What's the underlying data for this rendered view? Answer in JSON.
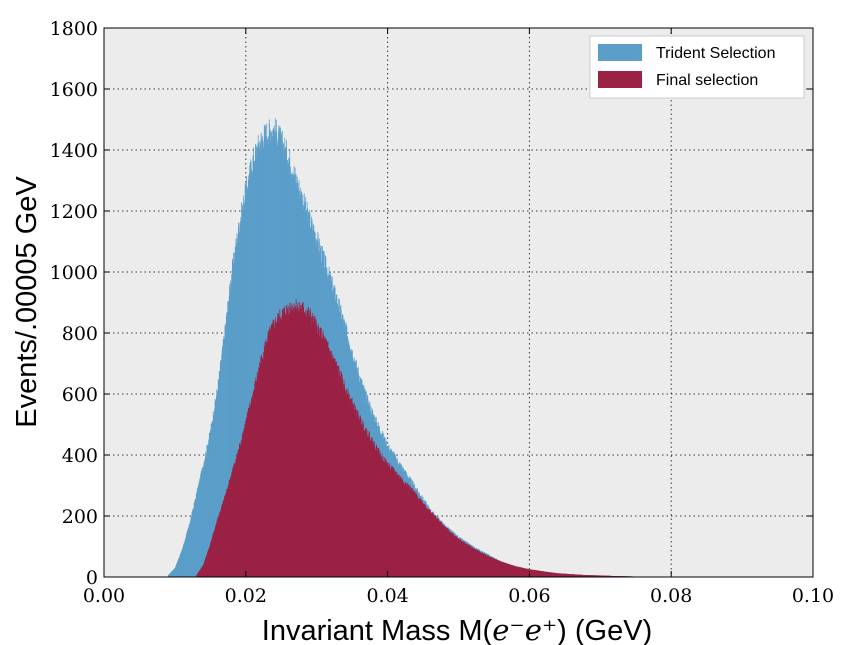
{
  "chart_data": {
    "type": "bar",
    "xlabel_prefix": "Invariant Mass M(",
    "xlabel_math": "e⁻e⁺",
    "xlabel_suffix": ") (GeV)",
    "ylabel": "Events/.00005 GeV",
    "xlim": [
      0.0,
      0.1
    ],
    "ylim": [
      0,
      1800
    ],
    "xticks": [
      "0.00",
      "0.02",
      "0.04",
      "0.06",
      "0.08",
      "0.10"
    ],
    "yticks": [
      "0",
      "200",
      "400",
      "600",
      "800",
      "1000",
      "1200",
      "1400",
      "1600",
      "1800"
    ],
    "grid": true,
    "legend_position": "top-right",
    "bin_width": 5e-05,
    "series": [
      {
        "name": "Trident Selection",
        "color": "#5a9ec9",
        "x": [
          0.009,
          0.01,
          0.011,
          0.012,
          0.013,
          0.014,
          0.015,
          0.016,
          0.017,
          0.018,
          0.019,
          0.02,
          0.021,
          0.022,
          0.023,
          0.024,
          0.025,
          0.026,
          0.027,
          0.028,
          0.029,
          0.03,
          0.031,
          0.032,
          0.033,
          0.034,
          0.035,
          0.036,
          0.037,
          0.038,
          0.039,
          0.04,
          0.042,
          0.044,
          0.046,
          0.048,
          0.05,
          0.052,
          0.054,
          0.056,
          0.058,
          0.06,
          0.062,
          0.064,
          0.066,
          0.068,
          0.07,
          0.072,
          0.074,
          0.076,
          0.078,
          0.08
        ],
        "values": [
          5,
          30,
          90,
          170,
          270,
          370,
          480,
          620,
          800,
          1000,
          1150,
          1270,
          1370,
          1430,
          1460,
          1470,
          1430,
          1380,
          1310,
          1240,
          1170,
          1110,
          1040,
          970,
          900,
          820,
          740,
          660,
          590,
          530,
          480,
          430,
          360,
          290,
          220,
          170,
          130,
          100,
          75,
          50,
          35,
          25,
          18,
          12,
          9,
          6,
          5,
          3,
          2,
          1,
          1,
          0
        ]
      },
      {
        "name": "Final selection",
        "color": "#9b2245",
        "x": [
          0.013,
          0.014,
          0.015,
          0.016,
          0.017,
          0.018,
          0.019,
          0.02,
          0.021,
          0.022,
          0.023,
          0.024,
          0.025,
          0.026,
          0.027,
          0.028,
          0.029,
          0.03,
          0.031,
          0.032,
          0.033,
          0.034,
          0.035,
          0.036,
          0.037,
          0.038,
          0.039,
          0.04,
          0.042,
          0.044,
          0.046,
          0.048,
          0.05,
          0.052,
          0.054,
          0.056,
          0.058,
          0.06,
          0.062,
          0.064,
          0.066,
          0.068,
          0.07,
          0.072,
          0.074,
          0.076,
          0.078,
          0.08
        ],
        "values": [
          5,
          40,
          110,
          190,
          260,
          340,
          420,
          510,
          600,
          700,
          780,
          830,
          860,
          880,
          890,
          880,
          860,
          820,
          780,
          730,
          680,
          620,
          570,
          520,
          480,
          440,
          400,
          370,
          320,
          270,
          215,
          165,
          125,
          95,
          70,
          50,
          35,
          25,
          18,
          12,
          9,
          6,
          5,
          3,
          2,
          1,
          1,
          0
        ]
      }
    ]
  }
}
